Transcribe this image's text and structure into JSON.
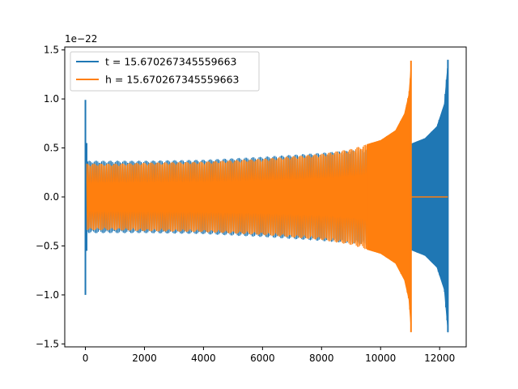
{
  "chart_data": {
    "type": "line",
    "title": "",
    "xlabel": "",
    "ylabel": "",
    "y_offset_label": "1e−22",
    "xlim": [
      -700,
      12900
    ],
    "ylim": [
      -1.53,
      1.53
    ],
    "x_ticks": [
      0,
      2000,
      4000,
      6000,
      8000,
      10000,
      12000
    ],
    "x_tick_labels": [
      "0",
      "2000",
      "4000",
      "6000",
      "8000",
      "10000",
      "12000"
    ],
    "y_ticks": [
      -1.5,
      -1.0,
      -0.5,
      0.0,
      0.5,
      1.0,
      1.5
    ],
    "y_tick_labels": [
      "−1.5",
      "−1.0",
      "−0.5",
      "0.0",
      "0.5",
      "1.0",
      "1.5"
    ],
    "grid": false,
    "legend_position": "top-left",
    "series": [
      {
        "name": "t = 15.670267345559663",
        "color": "#1f77b4",
        "envelope": {
          "x": [
            0,
            40,
            120,
            500,
            2000,
            4000,
            6000,
            8000,
            10000,
            11000,
            11500,
            11900,
            12150,
            12280
          ],
          "amp": [
            0.35,
            0.36,
            0.37,
            0.37,
            0.37,
            0.38,
            0.41,
            0.45,
            0.5,
            0.54,
            0.6,
            0.72,
            0.95,
            1.4
          ]
        },
        "spikes": [
          {
            "x": 0,
            "ymin": -1.0,
            "ymax": 0.99
          },
          {
            "x": 40,
            "ymin": -0.55,
            "ymax": 0.55
          },
          {
            "x": 12280,
            "ymin": -1.38,
            "ymax": 1.4
          }
        ],
        "end_x": 12280
      },
      {
        "name": "h = 15.670267345559663",
        "color": "#ff7f0e",
        "envelope": {
          "x": [
            40,
            150,
            1000,
            2000,
            4000,
            6000,
            8000,
            9000,
            10000,
            10500,
            10800,
            10950,
            11030
          ],
          "amp": [
            0.34,
            0.34,
            0.34,
            0.35,
            0.36,
            0.39,
            0.44,
            0.49,
            0.58,
            0.68,
            0.85,
            1.05,
            1.38
          ]
        },
        "spikes": [
          {
            "x": 11030,
            "ymin": -1.38,
            "ymax": 1.39
          }
        ],
        "end_x": 11030,
        "flat_after": {
          "x_start": 11030,
          "x_end": 12280,
          "y": 0.0
        }
      }
    ]
  }
}
